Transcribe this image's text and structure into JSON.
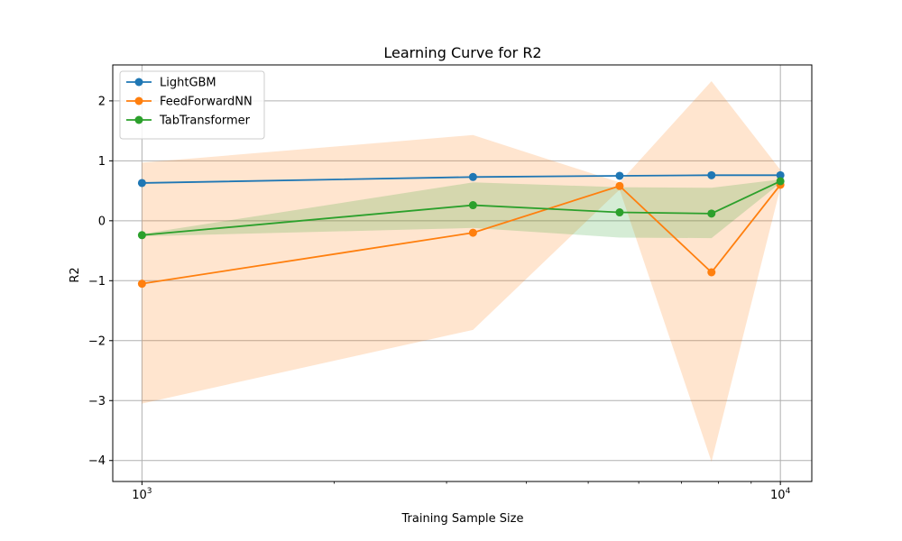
{
  "chart_data": {
    "type": "line",
    "title": "Learning Curve for R2",
    "xlabel": "Training Sample Size",
    "ylabel": "R2",
    "x_scale": "log",
    "x": [
      1000,
      3300,
      5600,
      7800,
      10000
    ],
    "xlim": [
      900,
      11200
    ],
    "ylim": [
      -4.35,
      2.6
    ],
    "x_ticks": [
      {
        "value": 1000,
        "base": "10",
        "exp": "3"
      },
      {
        "value": 10000,
        "base": "10",
        "exp": "4"
      }
    ],
    "y_ticks": [
      -4,
      -3,
      -2,
      -1,
      0,
      1,
      2
    ],
    "y_tick_labels": [
      "−4",
      "−3",
      "−2",
      "−1",
      "0",
      "1",
      "2"
    ],
    "grid": true,
    "legend_position": "top-left",
    "series": [
      {
        "name": "LightGBM",
        "color": "#1f77b4",
        "values": [
          0.63,
          0.73,
          0.75,
          0.76,
          0.76
        ],
        "band_lower": [
          0.62,
          0.72,
          0.74,
          0.75,
          0.75
        ],
        "band_upper": [
          0.64,
          0.74,
          0.76,
          0.77,
          0.77
        ]
      },
      {
        "name": "FeedForwardNN",
        "color": "#ff7f0e",
        "values": [
          -1.05,
          -0.2,
          0.58,
          -0.86,
          0.6
        ],
        "band_lower": [
          -3.05,
          -1.82,
          0.52,
          -4.02,
          0.55
        ],
        "band_upper": [
          0.97,
          1.43,
          0.64,
          2.33,
          0.85
        ]
      },
      {
        "name": "TabTransformer",
        "color": "#2ca02c",
        "values": [
          -0.24,
          0.26,
          0.14,
          0.12,
          0.66
        ],
        "band_lower": [
          -0.26,
          -0.12,
          -0.28,
          -0.29,
          0.63
        ],
        "band_upper": [
          -0.22,
          0.64,
          0.56,
          0.55,
          0.69
        ]
      }
    ]
  }
}
